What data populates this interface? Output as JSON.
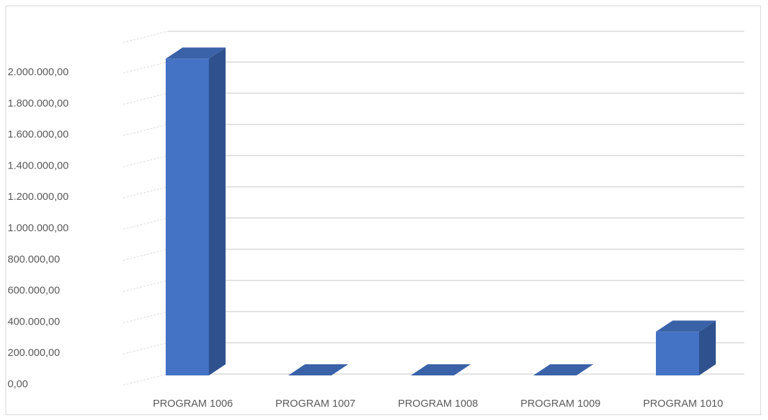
{
  "chart_data": {
    "type": "bar",
    "style": "3d-column",
    "categories": [
      "PROGRAM 1006",
      "PROGRAM 1007",
      "PROGRAM 1008",
      "PROGRAM 1009",
      "PROGRAM 1010"
    ],
    "series": [
      {
        "values": [
          2030000,
          0,
          0,
          0,
          280000
        ]
      }
    ],
    "title": "",
    "xlabel": "",
    "ylabel": "",
    "ylim": [
      0,
      2000000
    ],
    "yticks": [
      0,
      200000,
      400000,
      600000,
      800000,
      1000000,
      1200000,
      1400000,
      1600000,
      1800000,
      2000000
    ],
    "ytick_labels": [
      "0,00",
      "200.000,00",
      "400.000,00",
      "600.000,00",
      "800.000,00",
      "1.000.000,00",
      "1.200.000,00",
      "1.400.000,00",
      "1.600.000,00",
      "1.800.000,00",
      "2.000.000,00"
    ],
    "grid": true,
    "legend": "none",
    "colors": {
      "bar_front": "#4472c4",
      "bar_side": "#2f528f",
      "bar_top": "#3a62a8",
      "grid": "#d9d9d9",
      "wall_grid": "#e6e6e6",
      "text": "#595959"
    }
  }
}
